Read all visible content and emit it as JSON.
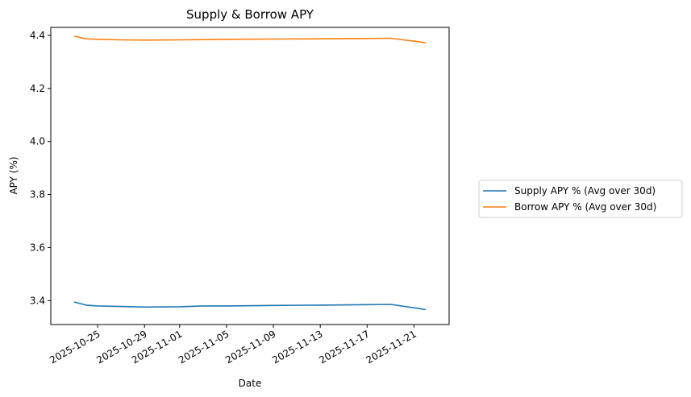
{
  "chart_data": {
    "type": "line",
    "title": "Supply & Borrow APY",
    "xlabel": "Date",
    "ylabel": "APY (%)",
    "x_ticks": [
      "2025-10-25",
      "2025-10-29",
      "2025-11-01",
      "2025-11-05",
      "2025-11-09",
      "2025-11-13",
      "2025-11-17",
      "2025-11-21"
    ],
    "y_ticks": [
      "3.4",
      "3.6",
      "3.8",
      "4.0",
      "4.2",
      "4.4"
    ],
    "xlim": [
      "2025-10-21",
      "2025-11-24"
    ],
    "ylim": [
      3.31,
      4.43
    ],
    "grid": false,
    "legend_position": "center-right outside",
    "series": [
      {
        "name": "Supply APY % (Avg over 30d)",
        "color": "#1f77b4",
        "x": [
          "2025-10-23",
          "2025-10-24",
          "2025-10-25",
          "2025-10-27",
          "2025-10-29",
          "2025-11-01",
          "2025-11-03",
          "2025-11-05",
          "2025-11-09",
          "2025-11-13",
          "2025-11-17",
          "2025-11-19",
          "2025-11-21",
          "2025-11-22"
        ],
        "y": [
          3.395,
          3.383,
          3.38,
          3.378,
          3.376,
          3.377,
          3.38,
          3.38,
          3.382,
          3.383,
          3.385,
          3.386,
          3.373,
          3.366
        ]
      },
      {
        "name": "Borrow APY % (Avg over 30d)",
        "color": "#ff7f0e",
        "x": [
          "2025-10-23",
          "2025-10-24",
          "2025-10-25",
          "2025-10-27",
          "2025-10-29",
          "2025-11-01",
          "2025-11-03",
          "2025-11-05",
          "2025-11-09",
          "2025-11-13",
          "2025-11-17",
          "2025-11-19",
          "2025-11-21",
          "2025-11-22"
        ],
        "y": [
          4.397,
          4.387,
          4.385,
          4.383,
          4.382,
          4.383,
          4.384,
          4.385,
          4.386,
          4.387,
          4.388,
          4.389,
          4.378,
          4.372
        ]
      }
    ]
  }
}
